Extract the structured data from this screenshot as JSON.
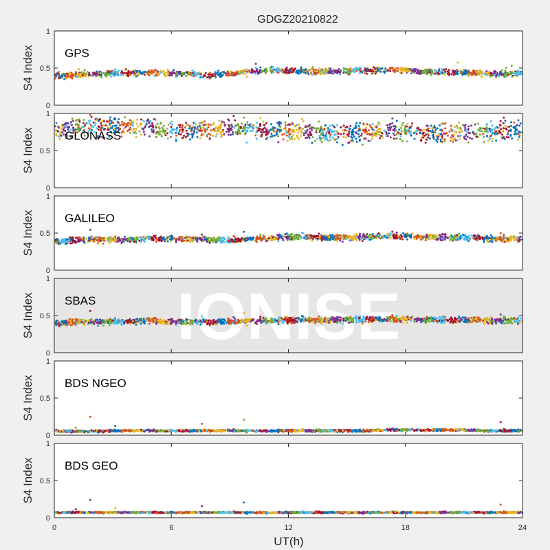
{
  "chart_data": {
    "type": "scatter",
    "title": "GDGZ20210822",
    "xlabel": "UT(h)",
    "xlim": [
      0,
      24
    ],
    "xticks": [
      0,
      6,
      12,
      18,
      24
    ],
    "watermark": "IONISE",
    "series_colors": [
      "#0072bd",
      "#d95319",
      "#edb120",
      "#7e2f8e",
      "#77ac30",
      "#4dbeee",
      "#a2142f"
    ],
    "panels": [
      {
        "label": "GPS",
        "ylabel": "S4 Index",
        "ylim": [
          0,
          1
        ],
        "yticks": [
          0,
          0.5,
          1
        ],
        "mean_s4": [
          0.4,
          0.4,
          0.42,
          0.43,
          0.43,
          0.44,
          0.43,
          0.42,
          0.4,
          0.43,
          0.45,
          0.47,
          0.46,
          0.46,
          0.45,
          0.46,
          0.47,
          0.47,
          0.47,
          0.45,
          0.45,
          0.44,
          0.43,
          0.42
        ],
        "spread": 0.04,
        "max_s4": 0.6
      },
      {
        "label": "GLONASS",
        "ylabel": "S4 Index",
        "ylim": [
          0,
          1
        ],
        "yticks": [
          0,
          0.5,
          1
        ],
        "mean_s4": [
          0.78,
          0.8,
          0.82,
          0.83,
          0.82,
          0.8,
          0.78,
          0.77,
          0.78,
          0.8,
          0.8,
          0.79,
          0.77,
          0.76,
          0.74,
          0.74,
          0.75,
          0.76,
          0.76,
          0.75,
          0.73,
          0.74,
          0.76,
          0.77
        ],
        "spread": 0.12,
        "max_s4": 1.0
      },
      {
        "label": "GALILEO",
        "ylabel": "S4 Index",
        "ylim": [
          0,
          1
        ],
        "yticks": [
          0,
          0.5,
          1
        ],
        "mean_s4": [
          0.39,
          0.4,
          0.41,
          0.41,
          0.41,
          0.42,
          0.43,
          0.42,
          0.41,
          0.4,
          0.42,
          0.44,
          0.45,
          0.45,
          0.44,
          0.44,
          0.45,
          0.46,
          0.46,
          0.45,
          0.44,
          0.44,
          0.43,
          0.42
        ],
        "spread": 0.04,
        "max_s4": 0.56
      },
      {
        "label": "SBAS",
        "ylabel": "S4 Index",
        "ylim": [
          0,
          1
        ],
        "yticks": [
          0,
          0.5,
          1
        ],
        "mean_s4": [
          0.4,
          0.41,
          0.41,
          0.42,
          0.42,
          0.43,
          0.42,
          0.42,
          0.41,
          0.42,
          0.43,
          0.44,
          0.44,
          0.44,
          0.44,
          0.45,
          0.45,
          0.45,
          0.45,
          0.45,
          0.44,
          0.44,
          0.44,
          0.43
        ],
        "spread": 0.04,
        "max_s4": 0.58
      },
      {
        "label": "BDS NGEO",
        "ylabel": "S4 Index",
        "ylim": [
          0,
          1
        ],
        "yticks": [
          0,
          0.5,
          1
        ],
        "mean_s4": [
          0.06,
          0.05,
          0.05,
          0.06,
          0.06,
          0.06,
          0.06,
          0.06,
          0.06,
          0.06,
          0.06,
          0.06,
          0.06,
          0.06,
          0.06,
          0.06,
          0.06,
          0.07,
          0.07,
          0.07,
          0.07,
          0.07,
          0.06,
          0.06
        ],
        "spread": 0.015,
        "max_s4": 0.27
      },
      {
        "label": "BDS GEO",
        "ylabel": "S4 Index",
        "ylim": [
          0,
          1
        ],
        "yticks": [
          0,
          0.5,
          1
        ],
        "mean_s4": [
          0.07,
          0.07,
          0.07,
          0.07,
          0.07,
          0.07,
          0.07,
          0.07,
          0.07,
          0.07,
          0.07,
          0.07,
          0.07,
          0.07,
          0.07,
          0.07,
          0.07,
          0.07,
          0.07,
          0.07,
          0.07,
          0.07,
          0.07,
          0.07
        ],
        "spread": 0.012,
        "max_s4": 0.26
      }
    ]
  }
}
